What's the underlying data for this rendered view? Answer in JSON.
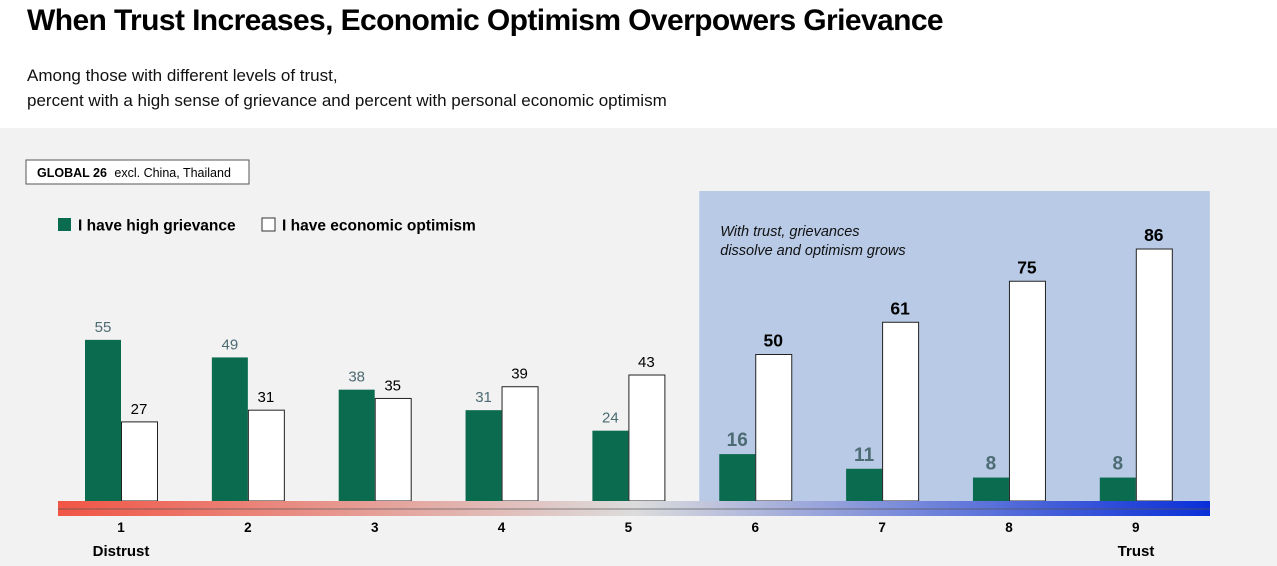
{
  "header": {
    "title": "When Trust Increases, Economic Optimism Overpowers Grievance",
    "subtitle_line1": "Among those with different levels of trust,",
    "subtitle_line2": "percent with a high sense of grievance and percent with personal economic optimism"
  },
  "chart_data": {
    "type": "bar",
    "badge_bold": "GLOBAL 26",
    "badge_rest": "excl. China, Thailand",
    "categories": [
      "1",
      "2",
      "3",
      "4",
      "5",
      "6",
      "7",
      "8",
      "9"
    ],
    "series": [
      {
        "name": "I have high grievance",
        "values": [
          55,
          49,
          38,
          31,
          24,
          16,
          11,
          8,
          8
        ],
        "color": "#0b6b4f"
      },
      {
        "name": "I have economic optimism",
        "values": [
          27,
          31,
          35,
          39,
          43,
          50,
          61,
          75,
          86
        ],
        "color": "#ffffff"
      }
    ],
    "highlight": {
      "from_category": "6",
      "to_category": "9",
      "color": "#b8cae6",
      "annotation_line1": "With trust, grievances",
      "annotation_line2": "dissolve and optimism grows"
    },
    "axis_end_labels": {
      "left": "Distrust",
      "right": "Trust"
    },
    "axis_gradient": {
      "start": "#f15545",
      "mid": "#dcdcdc",
      "end": "#0a2fd8"
    },
    "ylim": [
      0,
      100
    ],
    "grid": false,
    "legend_position": "top-left"
  }
}
